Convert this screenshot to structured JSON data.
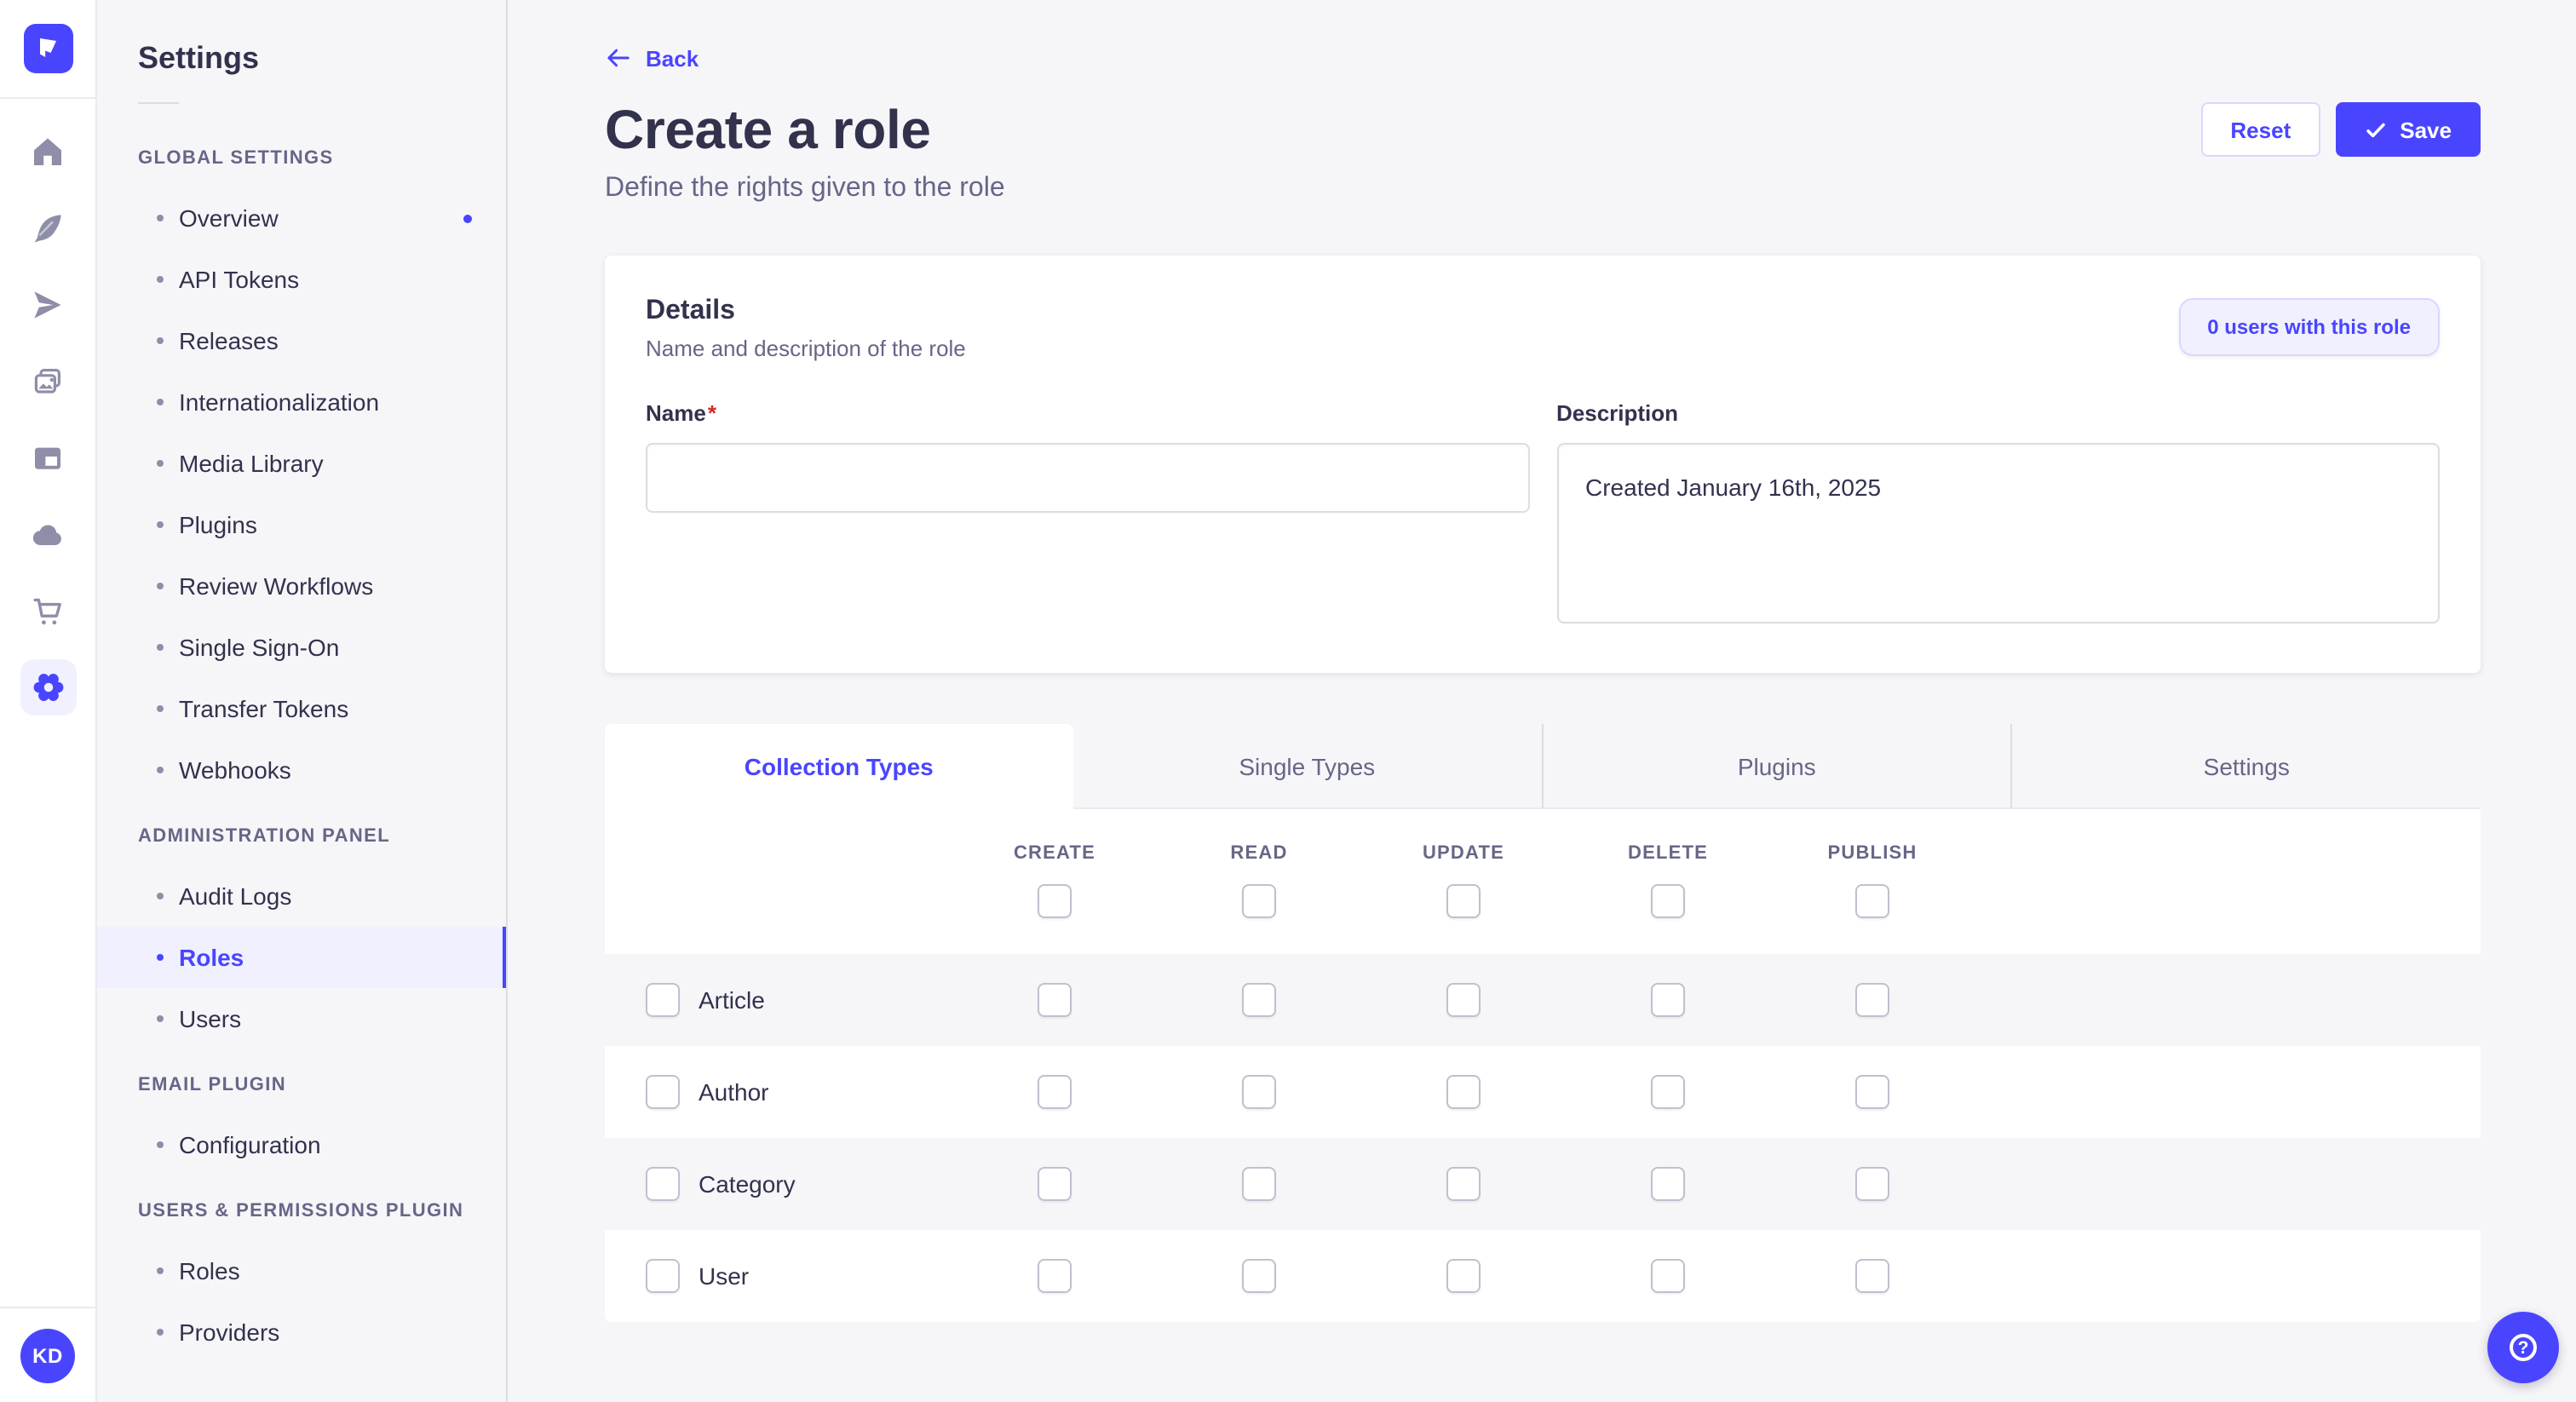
{
  "colors": {
    "accent": "#4945ff",
    "accent_dark": "#271fe0",
    "accent_bg": "#f0f0ff",
    "accent_border": "#d9d8ff",
    "text": "#32324d",
    "muted": "#666687",
    "icon": "#8e8ea9",
    "border": "#dcdce4",
    "border_light": "#eaeaef",
    "bg": "#f6f6f9",
    "danger": "#d02b20"
  },
  "rail": {
    "logo_icon": "strapi-logo",
    "icons": [
      "home",
      "quill",
      "paper-plane",
      "media-library",
      "layout",
      "cloud",
      "marketplace-cart",
      "settings-gear"
    ],
    "active_icon": "settings-gear",
    "avatar_initials": "KD"
  },
  "sidebar": {
    "title": "Settings",
    "sections": [
      {
        "label": "GLOBAL SETTINGS",
        "items": [
          {
            "label": "Overview",
            "notification": true
          },
          {
            "label": "API Tokens"
          },
          {
            "label": "Releases"
          },
          {
            "label": "Internationalization"
          },
          {
            "label": "Media Library"
          },
          {
            "label": "Plugins"
          },
          {
            "label": "Review Workflows"
          },
          {
            "label": "Single Sign-On"
          },
          {
            "label": "Transfer Tokens"
          },
          {
            "label": "Webhooks"
          }
        ]
      },
      {
        "label": "ADMINISTRATION PANEL",
        "items": [
          {
            "label": "Audit Logs"
          },
          {
            "label": "Roles",
            "active": true
          },
          {
            "label": "Users"
          }
        ]
      },
      {
        "label": "EMAIL PLUGIN",
        "items": [
          {
            "label": "Configuration"
          }
        ]
      },
      {
        "label": "USERS & PERMISSIONS PLUGIN",
        "items": [
          {
            "label": "Roles"
          },
          {
            "label": "Providers"
          }
        ]
      }
    ]
  },
  "header": {
    "back_label": "Back",
    "title": "Create a role",
    "subtitle": "Define the rights given to the role",
    "reset_label": "Reset",
    "save_label": "Save"
  },
  "details_card": {
    "title": "Details",
    "subtitle": "Name and description of the role",
    "users_badge": "0 users with this role",
    "name_label": "Name",
    "name_required_mark": "*",
    "name_value": "",
    "description_label": "Description",
    "description_value": "Created January 16th, 2025"
  },
  "permissions": {
    "tabs": [
      {
        "label": "Collection Types",
        "active": true
      },
      {
        "label": "Single Types"
      },
      {
        "label": "Plugins"
      },
      {
        "label": "Settings"
      }
    ],
    "columns": [
      "CREATE",
      "READ",
      "UPDATE",
      "DELETE",
      "PUBLISH"
    ],
    "rows": [
      {
        "label": "Article",
        "checked": [
          false,
          false,
          false,
          false,
          false
        ]
      },
      {
        "label": "Author",
        "checked": [
          false,
          false,
          false,
          false,
          false
        ]
      },
      {
        "label": "Category",
        "checked": [
          false,
          false,
          false,
          false,
          false
        ]
      },
      {
        "label": "User",
        "checked": [
          false,
          false,
          false,
          false,
          false
        ]
      }
    ]
  },
  "fab": {
    "icon": "help-question-mark"
  }
}
